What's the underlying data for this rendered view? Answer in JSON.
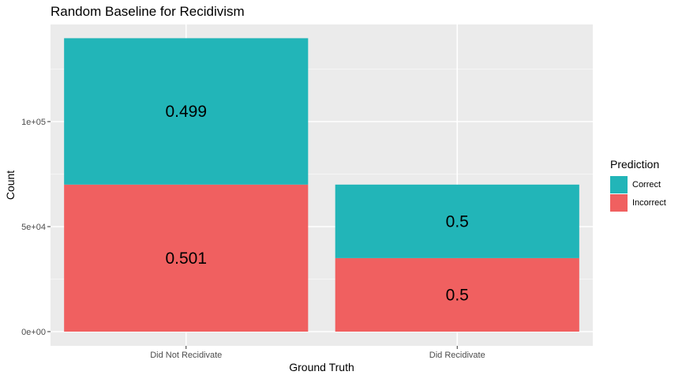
{
  "chart_data": {
    "type": "bar",
    "stacked": true,
    "title": "Random Baseline for Recidivism",
    "xlabel": "Ground Truth",
    "ylabel": "Count",
    "categories": [
      "Did Not Recidivate",
      "Did Recidivate"
    ],
    "ylim": [
      0,
      145000
    ],
    "yticks": [
      0,
      50000,
      100000
    ],
    "ytick_labels": [
      "0e+00",
      "5e+04",
      "1e+05"
    ],
    "grid": true,
    "legend": {
      "title": "Prediction",
      "placement": "right"
    },
    "series": [
      {
        "name": "Incorrect",
        "color": "#F06060",
        "values": [
          70000,
          35000
        ],
        "labels": [
          "0.501",
          "0.5"
        ]
      },
      {
        "name": "Correct",
        "color": "#22B5B8",
        "values": [
          69700,
          35000
        ],
        "labels": [
          "0.499",
          "0.5"
        ]
      }
    ]
  }
}
